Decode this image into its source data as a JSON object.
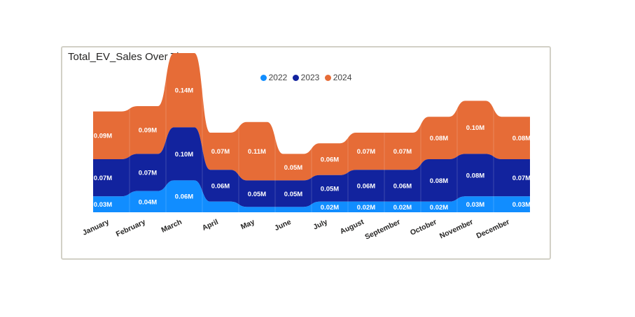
{
  "visual": {
    "title": "Total_EV_Sales Over Time"
  },
  "chart_data": {
    "type": "area",
    "stacked": true,
    "title": "Total_EV_Sales Over Time",
    "legend_position": "top-center",
    "categories": [
      "January",
      "February",
      "March",
      "April",
      "May",
      "June",
      "July",
      "August",
      "September",
      "October",
      "November",
      "December"
    ],
    "series": [
      {
        "name": "2022",
        "color": "#118DFF",
        "values": [
          0.03,
          0.04,
          0.06,
          0.02,
          0.01,
          0.01,
          0.02,
          0.02,
          0.02,
          0.02,
          0.03,
          0.03
        ],
        "labels": [
          "0.03M",
          "0.04M",
          "0.06M",
          "",
          "",
          "",
          "0.02M",
          "0.02M",
          "0.02M",
          "0.02M",
          "0.03M",
          "0.03M"
        ]
      },
      {
        "name": "2023",
        "color": "#12239E",
        "values": [
          0.07,
          0.07,
          0.1,
          0.06,
          0.05,
          0.05,
          0.05,
          0.06,
          0.06,
          0.08,
          0.08,
          0.07
        ],
        "labels": [
          "0.07M",
          "0.07M",
          "0.10M",
          "0.06M",
          "0.05M",
          "0.05M",
          "0.05M",
          "0.06M",
          "0.06M",
          "0.08M",
          "0.08M",
          "0.07M"
        ]
      },
      {
        "name": "2024",
        "color": "#E66C37",
        "values": [
          0.09,
          0.09,
          0.14,
          0.07,
          0.11,
          0.05,
          0.06,
          0.07,
          0.07,
          0.08,
          0.1,
          0.08
        ],
        "labels": [
          "0.09M",
          "0.09M",
          "0.14M",
          "0.07M",
          "0.11M",
          "0.05M",
          "0.06M",
          "0.07M",
          "0.07M",
          "0.08M",
          "0.10M",
          "0.08M"
        ]
      }
    ]
  }
}
